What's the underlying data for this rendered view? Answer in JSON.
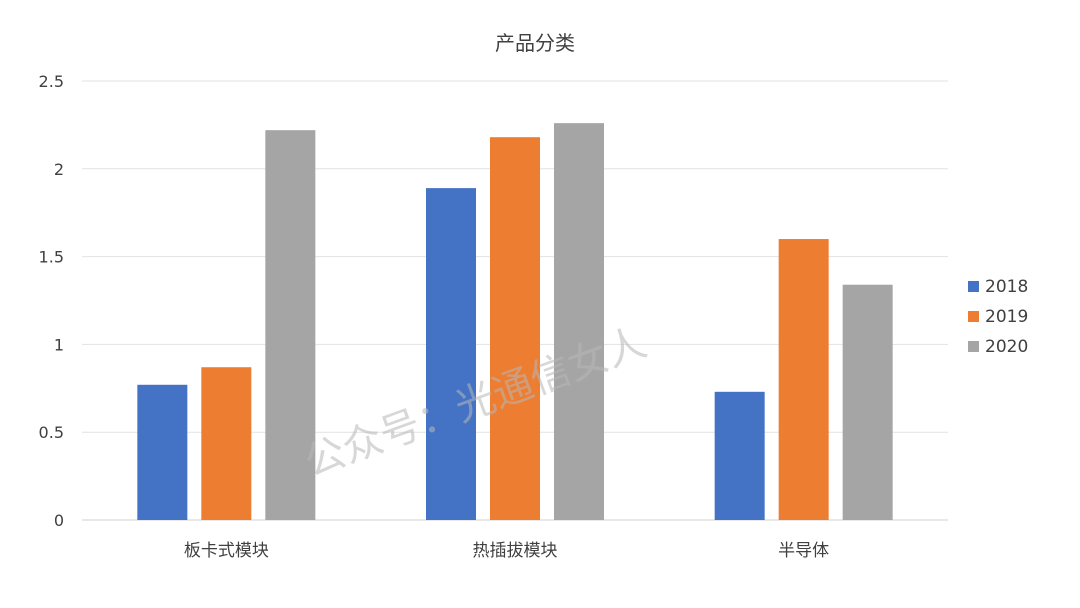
{
  "chart_data": {
    "type": "bar",
    "title": "产品分类",
    "categories": [
      "板卡式模块",
      "热插拔模块",
      "半导体"
    ],
    "series": [
      {
        "name": "2018",
        "color": "#4472C4",
        "values": [
          0.77,
          1.89,
          0.73
        ]
      },
      {
        "name": "2019",
        "color": "#ED7D31",
        "values": [
          0.87,
          2.18,
          1.6
        ]
      },
      {
        "name": "2020",
        "color": "#A5A5A5",
        "values": [
          2.22,
          2.26,
          1.34
        ]
      }
    ],
    "ylim": [
      0,
      2.5
    ],
    "yticks": [
      "0",
      "0.5",
      "1",
      "1.5",
      "2",
      "2.5"
    ],
    "grid": true,
    "legend_position": "right"
  },
  "watermark": "公众号：光通信女人"
}
